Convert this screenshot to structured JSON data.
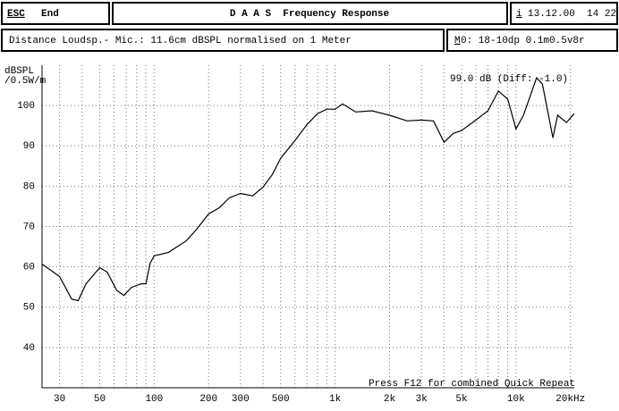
{
  "header": {
    "esc": "ESC",
    "end": "End",
    "title": "D A A S  Frequency Response",
    "info_key": "i",
    "date": "13.12.00  14 22",
    "distance": "Distance Loudsp.- Mic.: 11.6cm dBSPL normalised on 1 Meter",
    "memory_key": "M",
    "memory": "0: 18-10dp 0.1m0.5v8r"
  },
  "chart_data": {
    "type": "line",
    "ylabel": [
      "dBSPL",
      "/0.5W/m"
    ],
    "annotation": "99.0 dB (Diff: -1.0)",
    "footer_note": "Press F12 for combined Quick Repeat",
    "x": [
      24,
      30,
      35,
      38,
      42,
      50,
      55,
      62,
      68,
      75,
      85,
      90,
      95,
      100,
      120,
      150,
      170,
      200,
      230,
      260,
      300,
      350,
      400,
      450,
      500,
      600,
      700,
      800,
      900,
      1000,
      1100,
      1300,
      1600,
      2000,
      2500,
      3000,
      3500,
      4000,
      4500,
      5000,
      6000,
      7000,
      8000,
      9000,
      10000,
      11000,
      13000,
      14000,
      16000,
      17000,
      19000,
      21000
    ],
    "values": [
      60.7,
      57.6,
      52,
      51.6,
      55.8,
      59.8,
      58.7,
      54.2,
      52.9,
      54.9,
      55.8,
      55.8,
      60.9,
      62.7,
      63.6,
      66.4,
      69.1,
      73.1,
      74.7,
      77.1,
      78.2,
      77.6,
      79.8,
      82.9,
      86.9,
      91.3,
      95.3,
      98,
      99.1,
      99.1,
      100.4,
      98.4,
      98.7,
      97.6,
      96.2,
      96.4,
      96.2,
      90.9,
      93.1,
      93.8,
      96.4,
      98.7,
      103.6,
      101.6,
      94.2,
      97.6,
      106.9,
      105.3,
      92,
      97.6,
      95.8,
      98
    ],
    "color": "#000000",
    "xscale": "log",
    "grid": true,
    "xlim": [
      24,
      21000
    ],
    "ylim": [
      30,
      110
    ],
    "xticks": [
      30,
      50,
      100,
      200,
      300,
      500,
      {
        "value": 1000,
        "label": "1k"
      },
      {
        "value": 2000,
        "label": "2k"
      },
      {
        "value": 3000,
        "label": "3k"
      },
      {
        "value": 5000,
        "label": "5k"
      },
      {
        "value": 10000,
        "label": "10k"
      },
      {
        "value": 20000,
        "label": "20kHz"
      }
    ],
    "x_minor_ticks": [
      40,
      60,
      70,
      80,
      90,
      400,
      600,
      700,
      800,
      900,
      4000,
      6000,
      7000,
      8000,
      9000
    ],
    "yticks": [
      40,
      50,
      60,
      70,
      80,
      90,
      100
    ]
  }
}
